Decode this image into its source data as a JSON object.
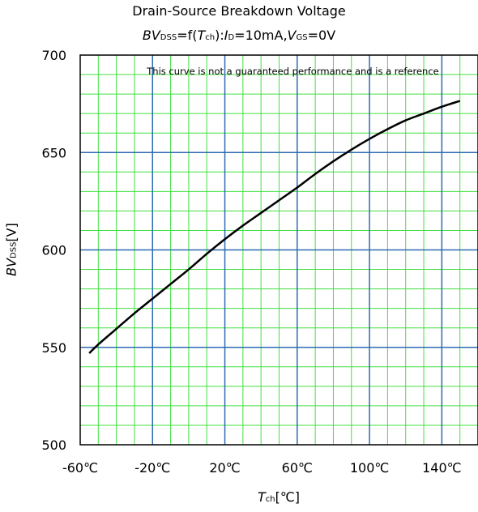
{
  "chart_data": {
    "type": "line",
    "title": "Drain-Source Breakdown Voltage",
    "subtitle": {
      "bv": "BV",
      "dss": "DSS",
      "eq_f": "=f(",
      "t": "T",
      "ch": "ch",
      "mid": "):",
      "i": "I",
      "d": "D",
      "cur": "=10mA,",
      "v": "V",
      "gs": "GS",
      "vgs": "=0V"
    },
    "note": "This curve is not a guaranteed performance and is a reference",
    "xlabel": {
      "t": "T",
      "ch": "ch",
      "unit": "[℃]"
    },
    "ylabel": {
      "bv": "BV",
      "dss": "DSS",
      "unit": "[V]"
    },
    "xlim": [
      -60,
      160
    ],
    "ylim": [
      500,
      700
    ],
    "x_ticks": [
      -60,
      -20,
      20,
      60,
      100,
      140
    ],
    "x_tick_labels": [
      "-60℃",
      "-20℃",
      "20℃",
      "60℃",
      "100℃",
      "140℃"
    ],
    "y_ticks": [
      500,
      550,
      600,
      650,
      700
    ],
    "y_tick_labels": [
      "500",
      "550",
      "600",
      "650",
      "700"
    ],
    "grid": {
      "major": true,
      "minor": true,
      "major_color": "#2e6bb0",
      "minor_color": "#40e040"
    },
    "series": [
      {
        "color": "#000000",
        "x": [
          -55,
          -50,
          -40,
          -30,
          -20,
          -10,
          0,
          10,
          20,
          30,
          40,
          50,
          60,
          70,
          80,
          90,
          100,
          110,
          120,
          130,
          140,
          150
        ],
        "y": [
          547,
          551.5,
          559.5,
          567.5,
          575,
          582.5,
          590,
          598,
          605.5,
          612.5,
          619,
          625.5,
          632,
          639,
          645.5,
          651.5,
          657,
          662,
          666.5,
          670,
          673.5,
          676.5
        ]
      }
    ]
  }
}
